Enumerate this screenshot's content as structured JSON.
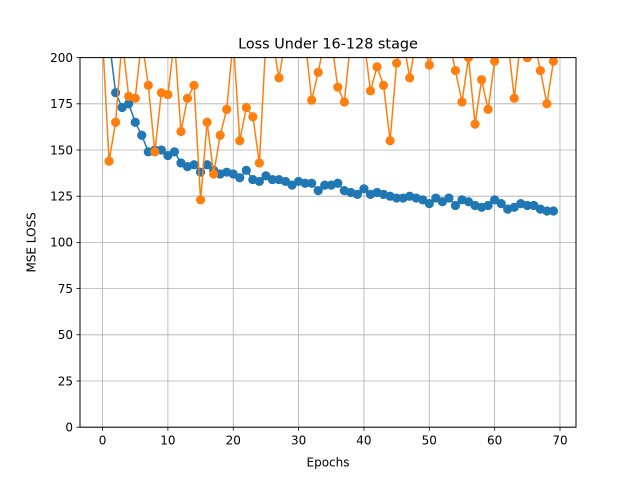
{
  "chart_data": {
    "type": "line",
    "title": "Loss Under 16-128 stage",
    "xlabel": "Epochs",
    "ylabel": "MSE LOSS",
    "xlim": [
      -3.45,
      72.45
    ],
    "ylim": [
      0,
      200
    ],
    "xticks": [
      0,
      10,
      20,
      30,
      40,
      50,
      60,
      70
    ],
    "yticks": [
      0,
      25,
      50,
      75,
      100,
      125,
      150,
      175,
      200
    ],
    "grid": true,
    "series": [
      {
        "color": "#1f77b4",
        "x": [
          0,
          1,
          2,
          3,
          4,
          5,
          6,
          7,
          8,
          9,
          10,
          11,
          12,
          13,
          14,
          15,
          16,
          17,
          18,
          19,
          20,
          21,
          22,
          23,
          24,
          25,
          26,
          27,
          28,
          29,
          30,
          31,
          32,
          33,
          34,
          35,
          36,
          37,
          38,
          39,
          40,
          41,
          42,
          43,
          44,
          45,
          46,
          47,
          48,
          49,
          50,
          51,
          52,
          53,
          54,
          55,
          56,
          57,
          58,
          59,
          60,
          61,
          62,
          63,
          64,
          65,
          66,
          67,
          68,
          69
        ],
        "y": [
          230,
          210,
          181,
          173,
          175,
          165,
          158,
          149,
          150,
          150,
          147,
          149,
          143,
          141,
          142,
          138,
          142,
          139,
          137,
          138,
          137,
          135,
          139,
          134,
          133,
          136,
          134,
          134,
          133,
          131,
          133,
          132,
          132,
          128,
          131,
          131,
          132,
          128,
          127,
          126,
          129,
          126,
          127,
          126,
          125,
          124,
          124,
          125,
          124,
          123,
          121,
          124,
          122,
          124,
          120,
          123,
          122,
          120,
          119,
          120,
          123,
          121,
          118,
          119,
          121,
          120,
          120,
          118,
          117,
          117
        ]
      },
      {
        "color": "#ff7f0e",
        "x": [
          0,
          1,
          2,
          3,
          4,
          5,
          6,
          7,
          8,
          9,
          10,
          11,
          12,
          13,
          14,
          15,
          16,
          17,
          18,
          19,
          20,
          21,
          22,
          23,
          24,
          25,
          26,
          27,
          28,
          29,
          30,
          31,
          32,
          33,
          34,
          35,
          36,
          37,
          38,
          39,
          40,
          41,
          42,
          43,
          44,
          45,
          46,
          47,
          48,
          49,
          50,
          51,
          52,
          53,
          54,
          55,
          56,
          57,
          58,
          59,
          60,
          61,
          62,
          63,
          64,
          65,
          66,
          67,
          68,
          69
        ],
        "y": [
          210,
          144,
          165,
          210,
          179,
          178,
          210,
          185,
          149,
          181,
          180,
          210,
          160,
          178,
          185,
          123,
          165,
          137,
          158,
          172,
          210,
          155,
          173,
          168,
          143,
          210,
          210,
          189,
          210,
          210,
          210,
          210,
          177,
          192,
          210,
          210,
          184,
          176,
          210,
          210,
          210,
          182,
          195,
          185,
          155,
          197,
          210,
          189,
          210,
          210,
          196,
          210,
          210,
          210,
          193,
          176,
          200,
          164,
          188,
          172,
          198,
          210,
          210,
          178,
          210,
          200,
          210,
          193,
          175,
          198
        ]
      }
    ]
  }
}
